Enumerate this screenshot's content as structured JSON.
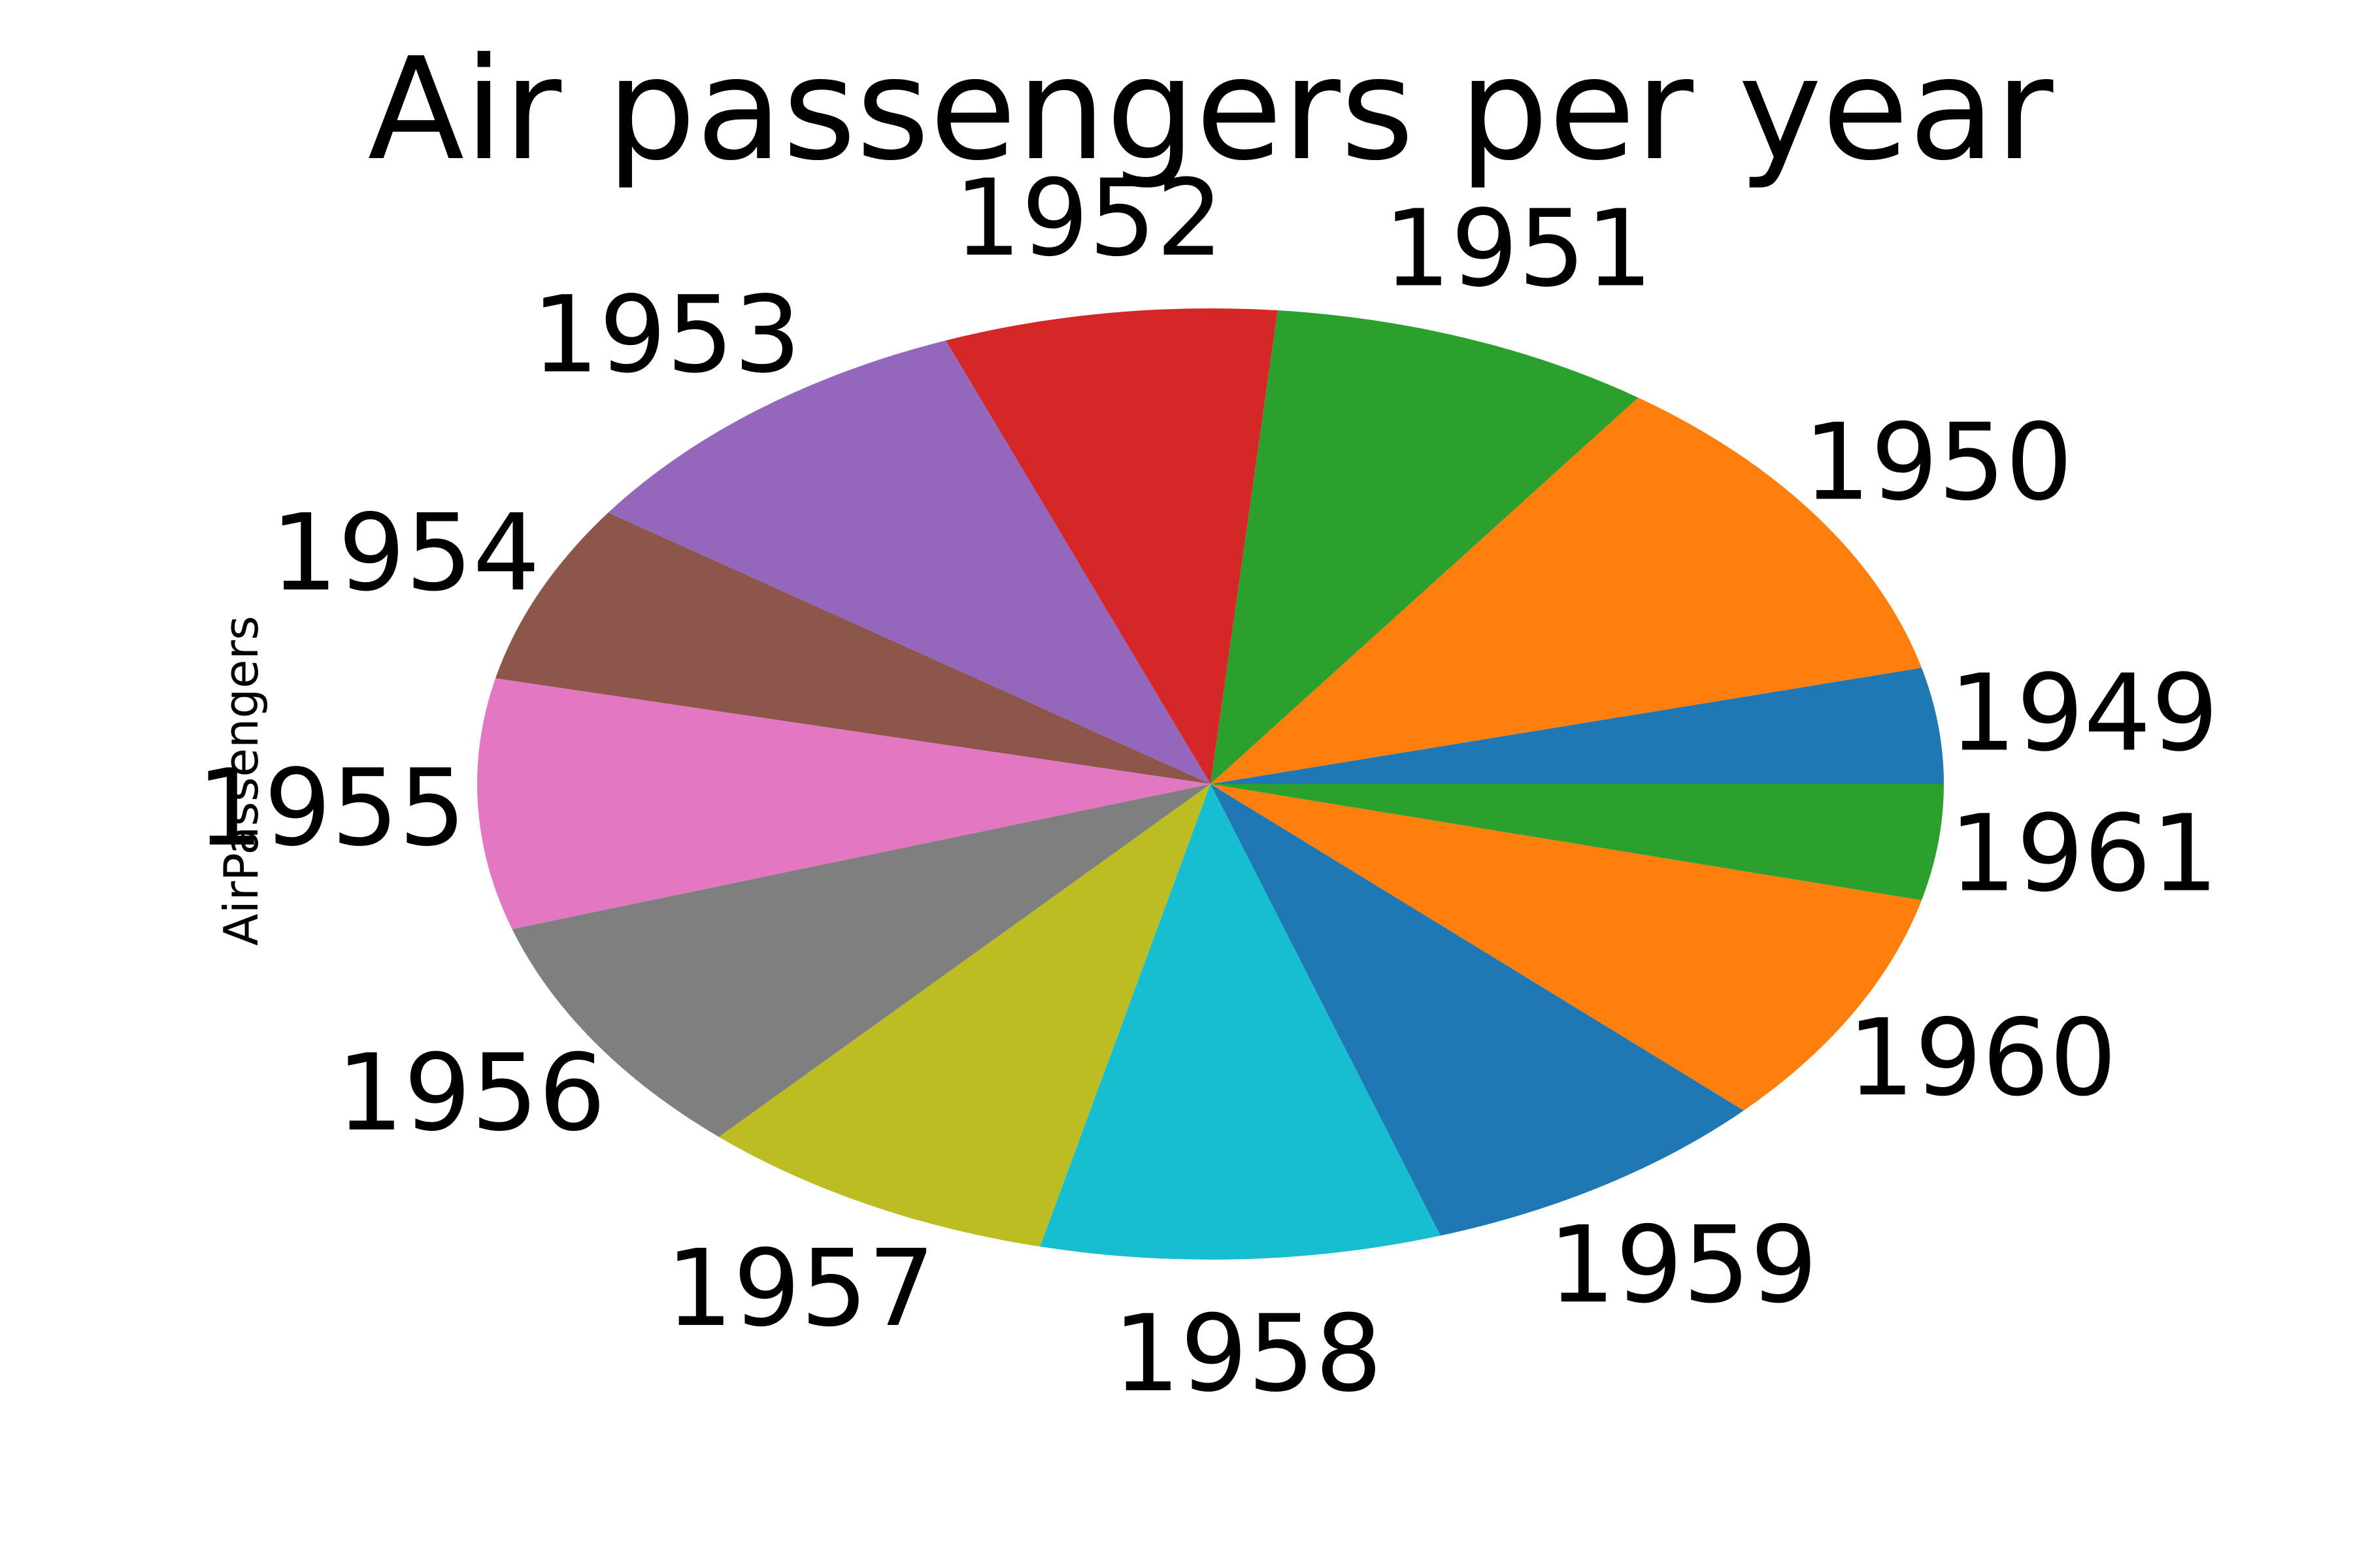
{
  "chart_data": {
    "type": "pie",
    "title": "Air passengers per year",
    "ylabel": "AirPassengers",
    "categories": [
      "1949",
      "1950",
      "1951",
      "1952",
      "1953",
      "1954",
      "1955",
      "1956",
      "1957",
      "1958",
      "1959",
      "1960",
      "1961"
    ],
    "values": [
      1520,
      4320,
      3270,
      2840,
      3660,
      2360,
      3290,
      3240,
      3080,
      3410,
      3050,
      3140,
      1520
    ],
    "start_angle_deg": 0,
    "direction": "counterclockwise",
    "colors": [
      "#1f77b4",
      "#ff7f0e",
      "#2ca02c",
      "#d62728",
      "#9467bd",
      "#8c564b",
      "#e377c2",
      "#7f7f7f",
      "#bcbd22",
      "#17becf",
      "#1f77b4",
      "#ff7f0e",
      "#2ca02c"
    ],
    "legend": "none"
  }
}
